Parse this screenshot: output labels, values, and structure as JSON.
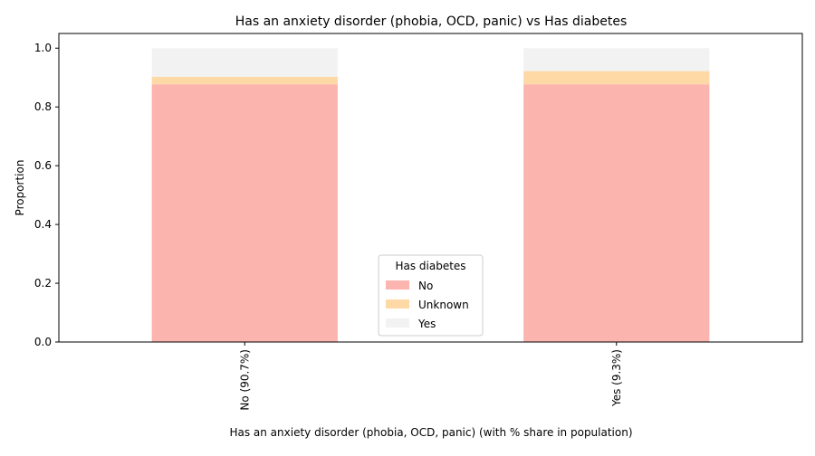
{
  "chart_data": {
    "type": "bar",
    "stacked": true,
    "title": "Has an anxiety disorder (phobia, OCD, panic) vs Has diabetes",
    "xlabel": "Has an anxiety disorder (phobia, OCD, panic) (with % share in population)",
    "ylabel": "Proportion",
    "ylim": [
      0,
      1.05
    ],
    "yticks": [
      "0.0",
      "0.2",
      "0.4",
      "0.6",
      "0.8",
      "1.0"
    ],
    "categories": [
      "No (90.7%)",
      "Yes (9.3%)"
    ],
    "series": [
      {
        "name": "No",
        "values": [
          0.877,
          0.877
        ],
        "color": "#fbb4ae"
      },
      {
        "name": "Unknown",
        "values": [
          0.026,
          0.045
        ],
        "color": "#fed9a6"
      },
      {
        "name": "Yes",
        "values": [
          0.097,
          0.078
        ],
        "color": "#f2f2f2"
      }
    ],
    "legend": {
      "title": "Has diabetes",
      "position": "bottom-center"
    },
    "grid": false
  }
}
